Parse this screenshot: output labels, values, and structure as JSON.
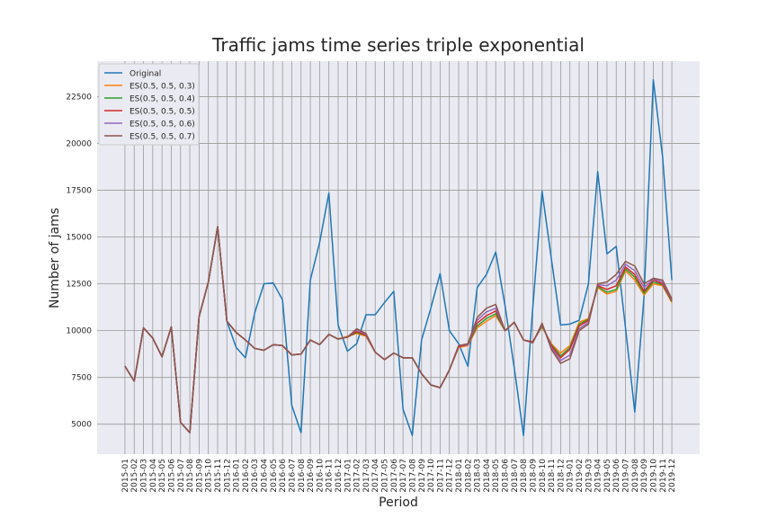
{
  "chart_data": {
    "type": "line",
    "title": "Traffic jams time series triple exponential",
    "x_label": "Period",
    "y_label": "Number of jams",
    "categories": [
      "2015-01",
      "2015-02",
      "2015-03",
      "2015-04",
      "2015-05",
      "2015-06",
      "2015-07",
      "2015-08",
      "2015-09",
      "2015-10",
      "2015-11",
      "2015-12",
      "2016-01",
      "2016-02",
      "2016-03",
      "2016-04",
      "2016-05",
      "2016-06",
      "2016-07",
      "2016-08",
      "2016-09",
      "2016-10",
      "2016-11",
      "2016-12",
      "2017-01",
      "2017-02",
      "2017-03",
      "2017-04",
      "2017-05",
      "2017-06",
      "2017-07",
      "2017-08",
      "2017-09",
      "2017-10",
      "2017-11",
      "2017-12",
      "2018-01",
      "2018-02",
      "2018-03",
      "2018-04",
      "2018-05",
      "2018-06",
      "2018-07",
      "2018-08",
      "2018-09",
      "2018-10",
      "2018-11",
      "2018-12",
      "2019-01",
      "2019-02",
      "2019-03",
      "2019-04",
      "2019-05",
      "2019-06",
      "2019-07",
      "2019-08",
      "2019-09",
      "2019-10",
      "2019-11",
      "2019-12"
    ],
    "series": [
      {
        "name": "Original",
        "color": "#1f77b4",
        "values": [
          8100,
          7300,
          10150,
          9600,
          8600,
          10200,
          5100,
          4550,
          10750,
          12600,
          15550,
          10500,
          9100,
          8550,
          10950,
          12500,
          12550,
          11650,
          6000,
          4550,
          12700,
          14700,
          17350,
          10300,
          8900,
          9300,
          10850,
          10850,
          11500,
          12100,
          5800,
          4400,
          9500,
          11200,
          13050,
          10000,
          9300,
          8100,
          12300,
          13000,
          14200,
          11350,
          8000,
          4400,
          11250,
          17450,
          13850,
          10300,
          10350,
          10550,
          12500,
          18500,
          14100,
          14500,
          10150,
          5650,
          11800,
          23400,
          19300,
          12700
        ]
      },
      {
        "name": "ES(0.5, 0.5, 0.3)",
        "color": "#ff7f0e",
        "values": [
          8100,
          7300,
          10150,
          9600,
          8600,
          10200,
          5100,
          4550,
          10750,
          12600,
          15550,
          10500,
          9900,
          9500,
          9050,
          8950,
          9250,
          9200,
          8700,
          8750,
          9500,
          9250,
          9800,
          9550,
          9700,
          9850,
          9700,
          8850,
          8450,
          8800,
          8550,
          8550,
          7700,
          7100,
          6950,
          7900,
          9100,
          9200,
          10150,
          10500,
          10800,
          10000,
          10450,
          9500,
          9400,
          10200,
          9300,
          8800,
          9200,
          10450,
          10650,
          12300,
          11950,
          12100,
          13200,
          12700,
          11900,
          12500,
          12400,
          11500
        ]
      },
      {
        "name": "ES(0.5, 0.5, 0.4)",
        "color": "#2ca02c",
        "values": [
          8100,
          7300,
          10150,
          9600,
          8600,
          10200,
          5100,
          4550,
          10750,
          12600,
          15550,
          10500,
          9900,
          9500,
          9050,
          8950,
          9250,
          9200,
          8700,
          8750,
          9500,
          9250,
          9800,
          9550,
          9650,
          9900,
          9750,
          8850,
          8450,
          8800,
          8550,
          8550,
          7700,
          7100,
          6950,
          7900,
          9150,
          9250,
          10250,
          10650,
          10900,
          10000,
          10450,
          9500,
          9400,
          10250,
          9250,
          8650,
          9100,
          10350,
          10600,
          12350,
          12050,
          12200,
          13300,
          12850,
          12000,
          12600,
          12450,
          11550
        ]
      },
      {
        "name": "ES(0.5, 0.5, 0.5)",
        "color": "#d62728",
        "values": [
          8100,
          7300,
          10150,
          9600,
          8600,
          10200,
          5100,
          4550,
          10750,
          12600,
          15550,
          10500,
          9900,
          9500,
          9050,
          8950,
          9250,
          9200,
          8700,
          8750,
          9500,
          9250,
          9800,
          9550,
          9650,
          9950,
          9750,
          8850,
          8450,
          8800,
          8550,
          8550,
          7700,
          7100,
          6950,
          7900,
          9150,
          9250,
          10400,
          10800,
          11050,
          10000,
          10450,
          9500,
          9400,
          10300,
          9200,
          8550,
          9000,
          10250,
          10550,
          12400,
          12200,
          12400,
          13400,
          13000,
          12100,
          12700,
          12500,
          11600
        ]
      },
      {
        "name": "ES(0.5, 0.5, 0.6)",
        "color": "#9467bd",
        "values": [
          8100,
          7300,
          10150,
          9600,
          8600,
          10200,
          5100,
          4550,
          10750,
          12600,
          15550,
          10500,
          9900,
          9500,
          9050,
          8950,
          9250,
          9200,
          8700,
          8750,
          9500,
          9250,
          9800,
          9550,
          9650,
          10050,
          9800,
          8850,
          8450,
          8800,
          8550,
          8550,
          7700,
          7100,
          6950,
          7900,
          9200,
          9250,
          10550,
          11000,
          11200,
          10000,
          10450,
          9500,
          9350,
          10350,
          9100,
          8400,
          8700,
          10100,
          10450,
          12450,
          12400,
          12700,
          13550,
          13200,
          12300,
          12750,
          12600,
          11650
        ]
      },
      {
        "name": "ES(0.5, 0.5, 0.7)",
        "color": "#8c564b",
        "values": [
          8100,
          7300,
          10150,
          9600,
          8600,
          10200,
          5100,
          4550,
          10750,
          12600,
          15550,
          10500,
          9900,
          9500,
          9050,
          8950,
          9250,
          9200,
          8700,
          8750,
          9500,
          9250,
          9800,
          9550,
          9650,
          10100,
          9850,
          8850,
          8450,
          8800,
          8550,
          8550,
          7700,
          7100,
          6950,
          7900,
          9200,
          9300,
          10700,
          11200,
          11400,
          10000,
          10450,
          9500,
          9350,
          10400,
          9000,
          8250,
          8500,
          10000,
          10350,
          12500,
          12600,
          13000,
          13700,
          13450,
          12500,
          12800,
          12700,
          11700
        ]
      }
    ],
    "ylim": [
      3400,
      24400
    ],
    "yticks": [
      5000,
      7500,
      10000,
      12500,
      15000,
      17500,
      20000,
      22500
    ],
    "grid": true,
    "legend": "upper left"
  }
}
